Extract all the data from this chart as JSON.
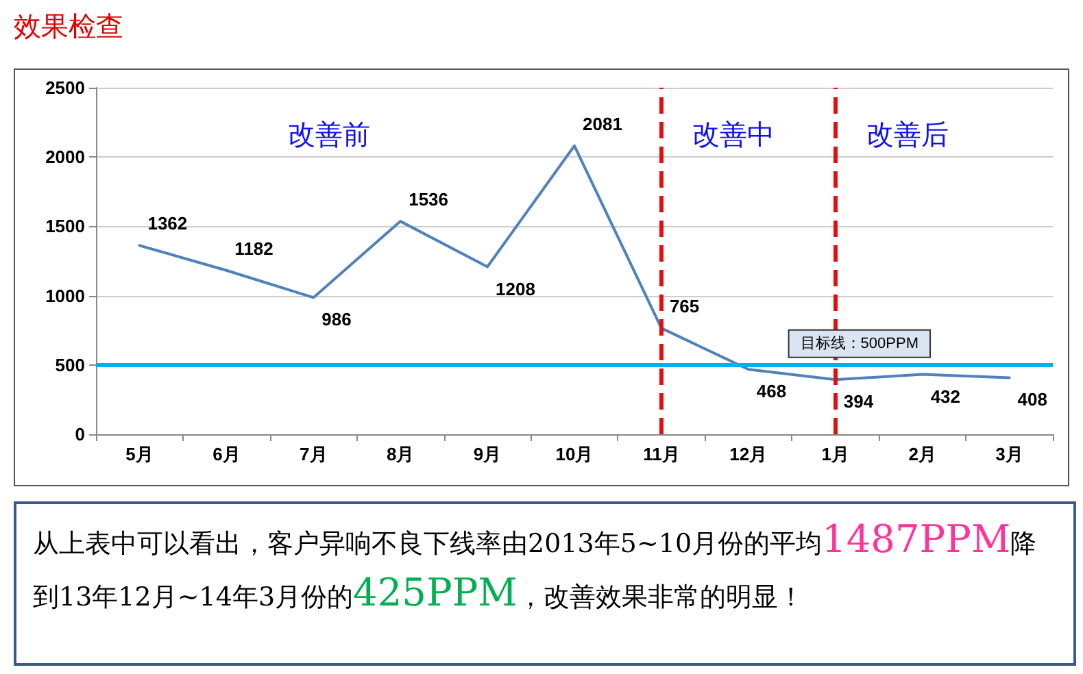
{
  "chart_data": {
    "type": "line",
    "title": "效果检查",
    "categories": [
      "5月",
      "6月",
      "7月",
      "8月",
      "9月",
      "10月",
      "11月",
      "12月",
      "1月",
      "2月",
      "3月"
    ],
    "series": [
      {
        "color": "#4f81bd",
        "values": [
          1362,
          1182,
          986,
          1536,
          1208,
          2081,
          765,
          468,
          394,
          432,
          408
        ]
      }
    ],
    "ylim": [
      0,
      2500
    ],
    "yticks": [
      0,
      500,
      1000,
      1500,
      2000,
      2500
    ],
    "grid": "y",
    "marker": "none",
    "line_style": "solid",
    "data_labels": true,
    "ref_lines": [
      {
        "axis": "y",
        "value": 500,
        "label": "目标线：500PPM",
        "color": "#00b0f0",
        "line_style": "solid"
      },
      {
        "axis": "x",
        "value": "11月",
        "color": "#e01010",
        "line_style": "dashed"
      },
      {
        "axis": "x",
        "value": "1月",
        "color": "#e01010",
        "line_style": "dashed"
      }
    ],
    "annotations": [
      "改善前",
      "改善中",
      "改善后",
      "从上表中可以看出，客户异响不良下线率由2013年5~10月份的平均",
      "1487PPM",
      "降到13年12月~14年3月份的",
      "425PPM",
      "，改善效果非常的明显！"
    ]
  }
}
